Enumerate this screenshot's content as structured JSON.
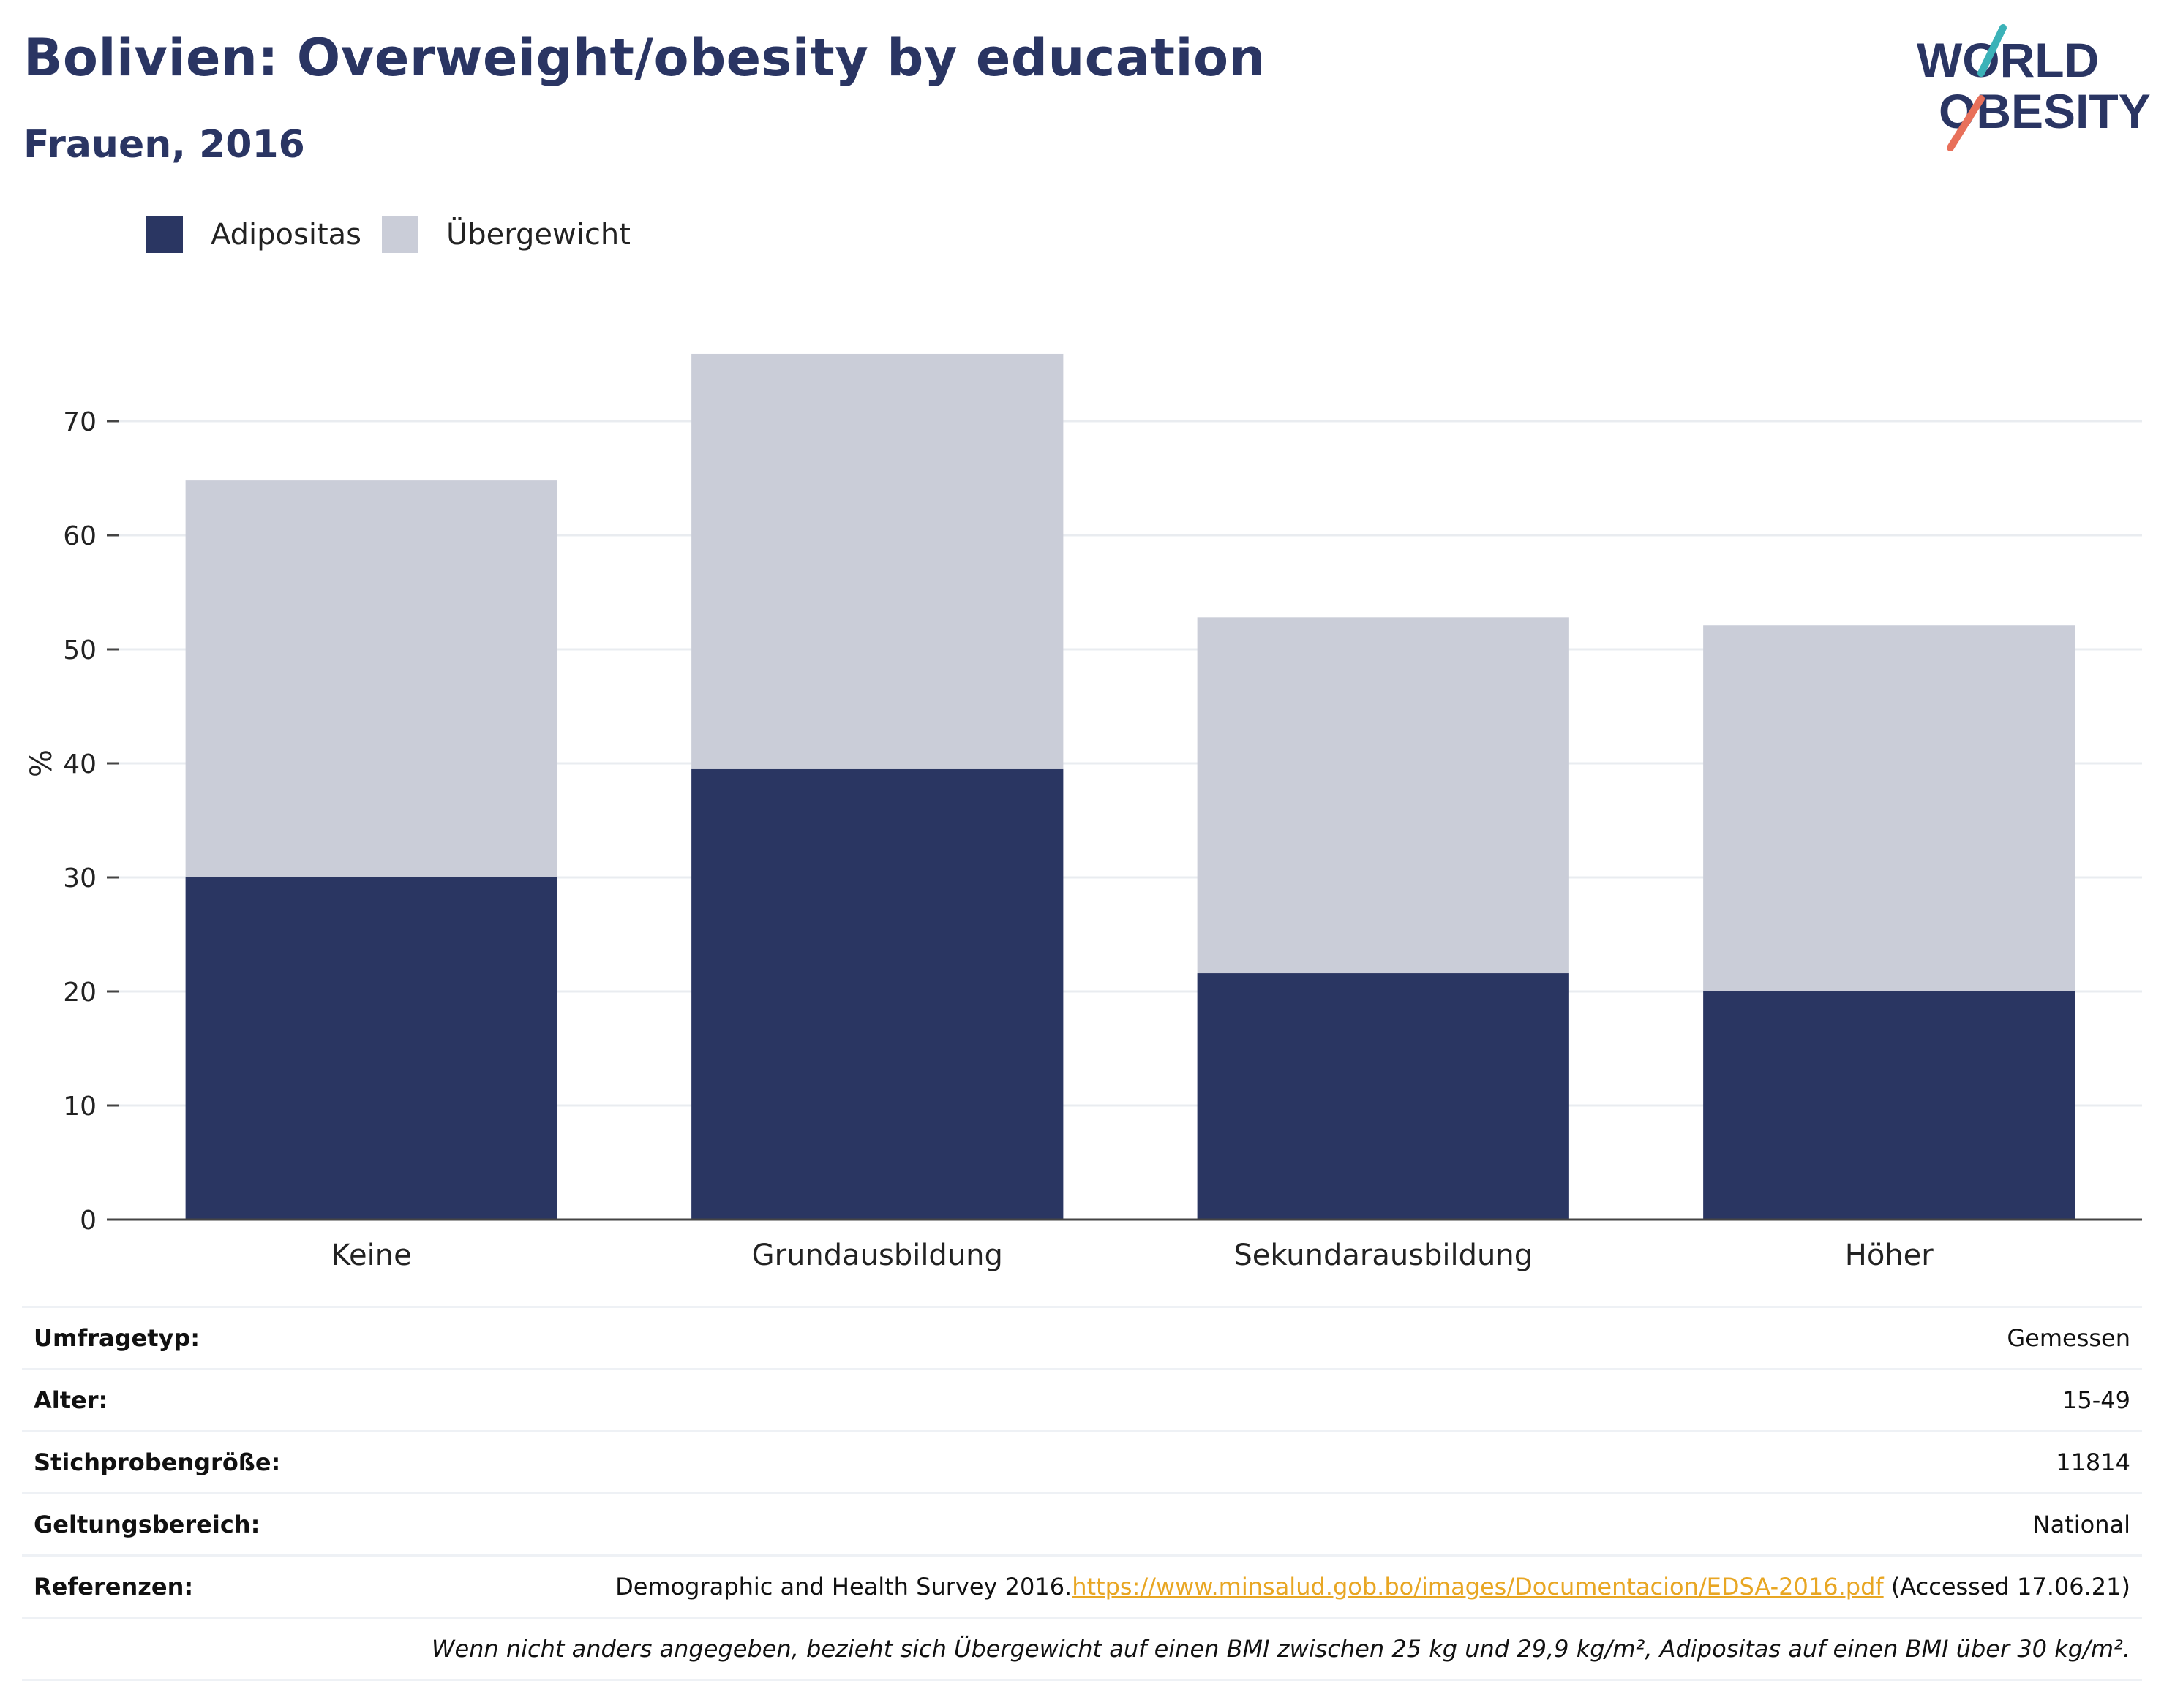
{
  "header": {
    "title": "Bolivien: Overweight/obesity by education",
    "subtitle": "Frauen, 2016"
  },
  "logo": {
    "line1": "WORLD",
    "line2": "OBESITY",
    "color": "#2a3563",
    "accent_teal": "#3bb2b8",
    "accent_coral": "#e8705a"
  },
  "legend": [
    {
      "label": "Adipositas",
      "color": "#2a3662"
    },
    {
      "label": "Übergewicht",
      "color": "#cacdd8"
    }
  ],
  "chart_data": {
    "type": "bar",
    "stacked": true,
    "categories": [
      "Keine",
      "Grundausbildung",
      "Sekundarausbildung",
      "Höher"
    ],
    "series": [
      {
        "name": "Adipositas",
        "values": [
          30.0,
          39.5,
          21.6,
          20.0
        ],
        "color": "#2a3662"
      },
      {
        "name": "Übergewicht",
        "values": [
          34.8,
          36.4,
          31.2,
          32.1
        ],
        "color": "#cacdd8"
      }
    ],
    "ylabel": "%",
    "ylim": [
      0,
      80
    ],
    "yticks": [
      0,
      10,
      20,
      30,
      40,
      50,
      60,
      70
    ],
    "grid": true
  },
  "meta": {
    "survey_type": {
      "label": "Umfragetyp:",
      "value": "Gemessen"
    },
    "age": {
      "label": "Alter:",
      "value": "15-49"
    },
    "sample_size": {
      "label": "Stichprobengröße:",
      "value": "11814"
    },
    "scope": {
      "label": "Geltungsbereich:",
      "value": "National"
    },
    "references": {
      "label": "Referenzen:",
      "source": "Demographic and Health Survey 2016.",
      "link": "https://www.minsalud.gob.bo/images/Documentacion/EDSA-2016.pdf",
      "accessed": " (Accessed 17.06.21)"
    },
    "note": "Wenn nicht anders angegeben, bezieht sich Übergewicht auf einen BMI zwischen 25 kg und 29,9 kg/m², Adipositas auf einen BMI über 30 kg/m²."
  }
}
